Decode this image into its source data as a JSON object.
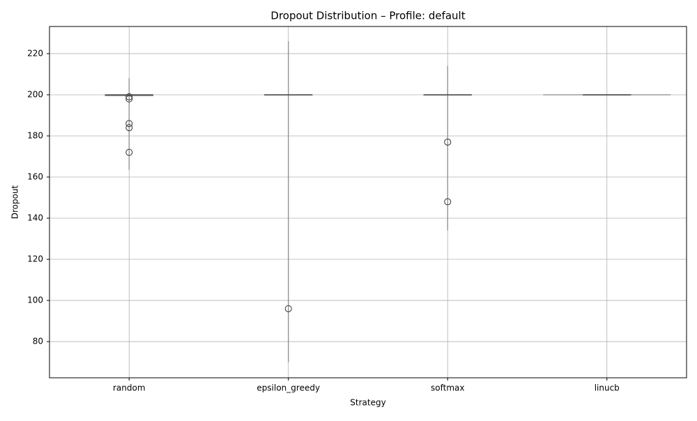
{
  "chart_data": {
    "type": "violin",
    "title": "Dropout Distribution – Profile: default",
    "x_label": "Strategy",
    "y_label": "Dropout",
    "categories": [
      "random",
      "epsilon_greedy",
      "softmax",
      "linucb"
    ],
    "series": [
      {
        "name": "random",
        "violin_min": 163.5,
        "violin_max": 208,
        "q1": 199.6,
        "median": 200,
        "q3": 200,
        "outliers": [
          199,
          198,
          186,
          184,
          172
        ]
      },
      {
        "name": "epsilon_greedy",
        "violin_min": 70,
        "violin_max": 226,
        "q1": 200,
        "median": 200,
        "q3": 200,
        "outliers": [
          96
        ]
      },
      {
        "name": "softmax",
        "violin_min": 134,
        "violin_max": 214,
        "q1": 200,
        "median": 200,
        "q3": 200,
        "outliers": [
          177,
          148
        ]
      },
      {
        "name": "linucb",
        "violin_min": 200,
        "violin_max": 200,
        "q1": 200,
        "median": 200,
        "q3": 200,
        "outliers": []
      }
    ],
    "color": "#555555",
    "ylim": [
      62.4,
      233.2
    ],
    "yticks": [
      80,
      100,
      120,
      140,
      160,
      180,
      200,
      220
    ],
    "grid": true
  }
}
